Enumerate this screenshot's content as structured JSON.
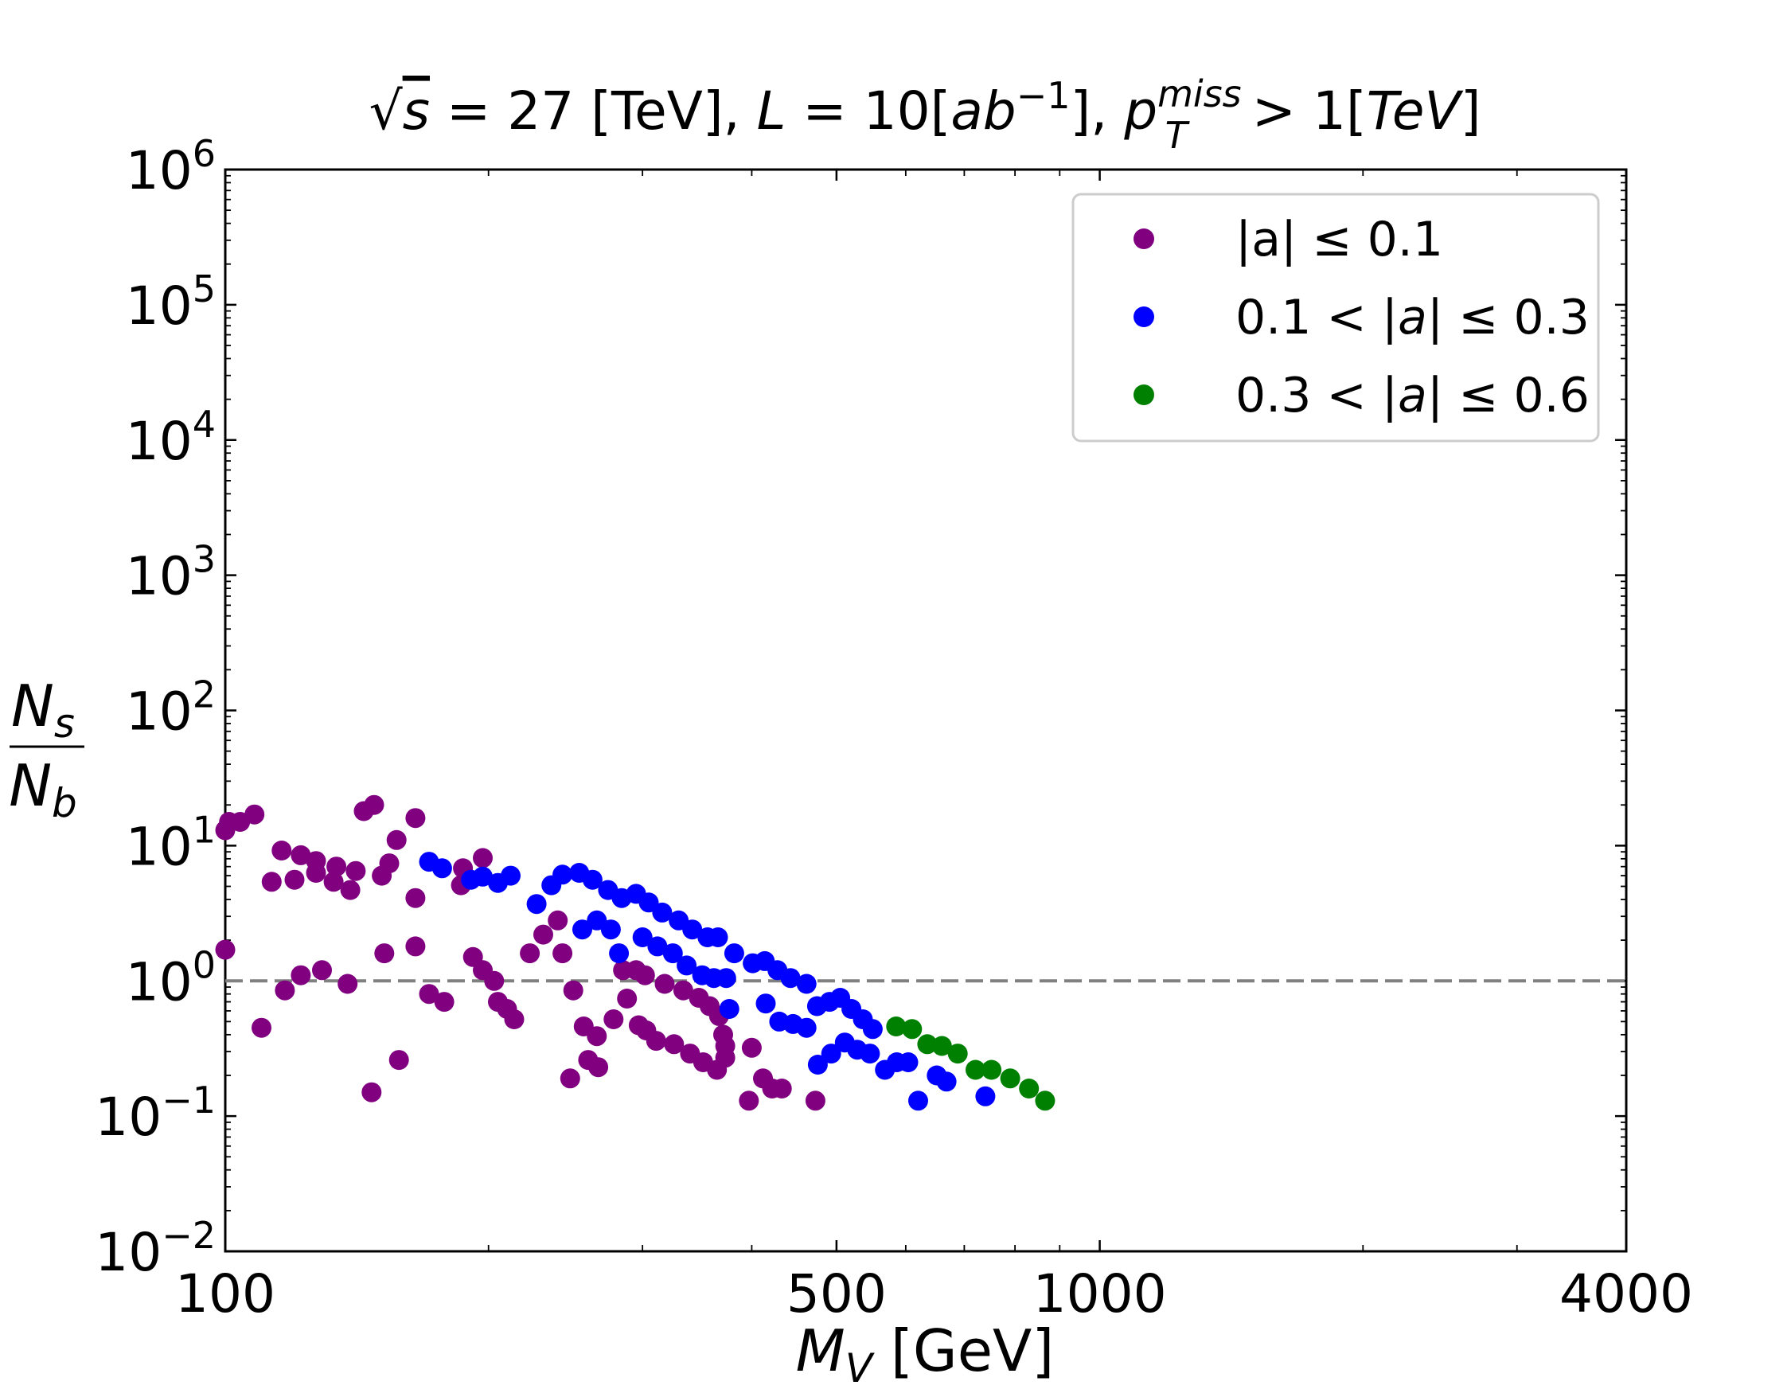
{
  "chart_data": {
    "type": "scatter",
    "title": {
      "sqrt_symbol": "√",
      "s_var": "s",
      "energy_text": " = 27 [TeV], ",
      "lumi_var": "L",
      "lumi_eq": " = 10[",
      "lumi_unit": "ab",
      "lumi_exp": "−1",
      "lumi_close": "], ",
      "pt_var": "p",
      "pt_sub": "T",
      "pt_sup": "miss",
      "cut_text": " > 1[",
      "cut_unit": "TeV",
      "cut_close": "]"
    },
    "xlabel": {
      "var": "M",
      "sub": "V",
      "unit": " [GeV]"
    },
    "ylabel": {
      "numerator": "N",
      "numerator_sub": "s",
      "denominator": "N",
      "denominator_sub": "b"
    },
    "xscale": "log",
    "yscale": "log",
    "xlim": [
      100,
      4000
    ],
    "ylim": [
      0.01,
      1000000
    ],
    "xticks": [
      {
        "value": 100,
        "label": "100"
      },
      {
        "value": 500,
        "label": "500"
      },
      {
        "value": 1000,
        "label": "1000"
      },
      {
        "value": 4000,
        "label": "4000"
      }
    ],
    "yticks": [
      {
        "value": 0.01,
        "base": "10",
        "exp": "−2"
      },
      {
        "value": 0.1,
        "base": "10",
        "exp": "−1"
      },
      {
        "value": 1,
        "base": "10",
        "exp": "0"
      },
      {
        "value": 10,
        "base": "10",
        "exp": "1"
      },
      {
        "value": 100,
        "base": "10",
        "exp": "2"
      },
      {
        "value": 1000,
        "base": "10",
        "exp": "3"
      },
      {
        "value": 10000,
        "base": "10",
        "exp": "4"
      },
      {
        "value": 100000,
        "base": "10",
        "exp": "5"
      },
      {
        "value": 1000000,
        "base": "10",
        "exp": "6"
      }
    ],
    "reference_line": {
      "y": 1,
      "style": "dashed",
      "color": "#808080"
    },
    "legend": {
      "position": "top-right"
    },
    "series": [
      {
        "name": "|a| ≤ 0.1",
        "legend_parts": [
          {
            "text": "|a| ≤ 0.1",
            "italic": false
          }
        ],
        "color": "#800080",
        "points": [
          [
            100,
            13
          ],
          [
            101,
            15
          ],
          [
            104,
            15
          ],
          [
            108,
            17
          ],
          [
            110,
            0.45
          ],
          [
            116,
            9.2
          ],
          [
            122,
            8.5
          ],
          [
            127,
            7.7
          ],
          [
            134,
            7
          ],
          [
            141,
            6.5
          ],
          [
            148,
            20
          ],
          [
            144,
            18
          ],
          [
            151,
            6
          ],
          [
            157,
            11
          ],
          [
            165,
            16
          ],
          [
            113,
            5.4
          ],
          [
            120,
            5.6
          ],
          [
            127,
            6.3
          ],
          [
            133,
            5.4
          ],
          [
            139,
            4.7
          ],
          [
            154,
            7.4
          ],
          [
            165,
            4.1
          ],
          [
            100,
            1.7
          ],
          [
            117,
            0.85
          ],
          [
            122,
            1.1
          ],
          [
            129,
            1.2
          ],
          [
            138,
            0.95
          ],
          [
            147,
            0.15
          ],
          [
            152,
            1.6
          ],
          [
            158,
            0.26
          ],
          [
            165,
            1.8
          ],
          [
            171,
            0.8
          ],
          [
            178,
            0.7
          ],
          [
            187,
            6.8
          ],
          [
            186,
            5.1
          ],
          [
            192,
            1.5
          ],
          [
            197,
            8.1
          ],
          [
            197,
            1.2
          ],
          [
            203,
            1
          ],
          [
            205,
            0.7
          ],
          [
            210,
            0.62
          ],
          [
            214,
            0.52
          ],
          [
            223,
            1.6
          ],
          [
            231,
            2.2
          ],
          [
            240,
            2.8
          ],
          [
            243,
            1.6
          ],
          [
            248,
            0.19
          ],
          [
            250,
            0.85
          ],
          [
            257,
            0.46
          ],
          [
            260,
            0.26
          ],
          [
            266,
            0.39
          ],
          [
            267,
            0.23
          ],
          [
            278,
            0.52
          ],
          [
            285,
            1.2
          ],
          [
            288,
            0.74
          ],
          [
            295,
            1.2
          ],
          [
            297,
            0.47
          ],
          [
            302,
            1.1
          ],
          [
            303,
            0.43
          ],
          [
            311,
            0.36
          ],
          [
            318,
            0.95
          ],
          [
            326,
            0.34
          ],
          [
            334,
            0.85
          ],
          [
            340,
            0.29
          ],
          [
            348,
            0.75
          ],
          [
            352,
            0.25
          ],
          [
            358,
            0.65
          ],
          [
            367,
            0.55
          ],
          [
            365,
            0.22
          ],
          [
            371,
            0.4
          ],
          [
            373,
            0.27
          ],
          [
            373,
            0.33
          ],
          [
            397,
            0.13
          ],
          [
            400,
            0.32
          ],
          [
            412,
            0.19
          ],
          [
            422,
            0.16
          ],
          [
            433,
            0.16
          ],
          [
            473,
            0.13
          ]
        ]
      },
      {
        "name": "0.1 < |a| ≤ 0.3",
        "legend_parts": [
          {
            "text": "0.1 < |",
            "italic": false
          },
          {
            "text": "a",
            "italic": true
          },
          {
            "text": "| ≤ 0.3",
            "italic": false
          }
        ],
        "color": "#0000ff",
        "points": [
          [
            171,
            7.6
          ],
          [
            177,
            6.8
          ],
          [
            191,
            5.6
          ],
          [
            197,
            5.9
          ],
          [
            205,
            5.3
          ],
          [
            212,
            6
          ],
          [
            227,
            3.7
          ],
          [
            236,
            5.1
          ],
          [
            243,
            6.1
          ],
          [
            254,
            6.3
          ],
          [
            263,
            5.6
          ],
          [
            274,
            4.7
          ],
          [
            284,
            4.1
          ],
          [
            295,
            4.4
          ],
          [
            305,
            3.8
          ],
          [
            316,
            3.2
          ],
          [
            330,
            2.8
          ],
          [
            342,
            2.4
          ],
          [
            356,
            2.1
          ],
          [
            366,
            2.1
          ],
          [
            256,
            2.4
          ],
          [
            266,
            2.8
          ],
          [
            276,
            2.4
          ],
          [
            282,
            1.6
          ],
          [
            300,
            2.1
          ],
          [
            312,
            1.8
          ],
          [
            325,
            1.6
          ],
          [
            337,
            1.3
          ],
          [
            351,
            1.1
          ],
          [
            362,
            1.05
          ],
          [
            374,
            1.05
          ],
          [
            382,
            1.6
          ],
          [
            401,
            1.35
          ],
          [
            414,
            1.4
          ],
          [
            428,
            1.2
          ],
          [
            443,
            1.05
          ],
          [
            462,
            0.95
          ],
          [
            377,
            0.62
          ],
          [
            415,
            0.68
          ],
          [
            430,
            0.5
          ],
          [
            446,
            0.48
          ],
          [
            462,
            0.45
          ],
          [
            475,
            0.65
          ],
          [
            491,
            0.7
          ],
          [
            505,
            0.75
          ],
          [
            520,
            0.62
          ],
          [
            536,
            0.52
          ],
          [
            550,
            0.44
          ],
          [
            476,
            0.24
          ],
          [
            493,
            0.29
          ],
          [
            511,
            0.35
          ],
          [
            528,
            0.31
          ],
          [
            546,
            0.29
          ],
          [
            568,
            0.22
          ],
          [
            586,
            0.25
          ],
          [
            604,
            0.25
          ],
          [
            620,
            0.13
          ],
          [
            651,
            0.2
          ],
          [
            668,
            0.18
          ],
          [
            740,
            0.14
          ]
        ]
      },
      {
        "name": "0.3 < |a| ≤ 0.6",
        "legend_parts": [
          {
            "text": "0.3 < |",
            "italic": false
          },
          {
            "text": "a",
            "italic": true
          },
          {
            "text": "| ≤ 0.6",
            "italic": false
          }
        ],
        "color": "#008000",
        "points": [
          [
            585,
            0.46
          ],
          [
            610,
            0.44
          ],
          [
            635,
            0.34
          ],
          [
            660,
            0.33
          ],
          [
            688,
            0.29
          ],
          [
            721,
            0.22
          ],
          [
            752,
            0.22
          ],
          [
            790,
            0.19
          ],
          [
            830,
            0.16
          ],
          [
            866,
            0.13
          ]
        ]
      }
    ]
  }
}
